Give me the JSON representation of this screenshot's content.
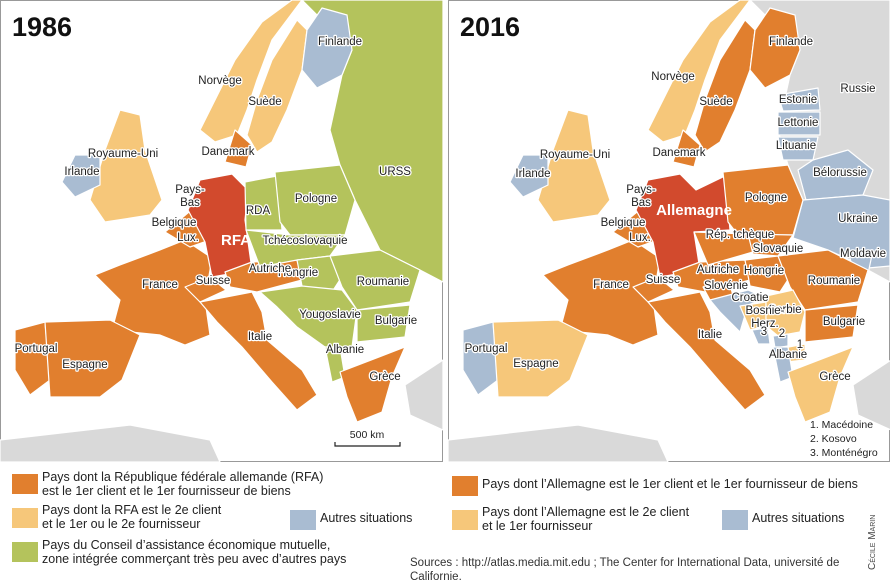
{
  "maps": [
    {
      "title": "1986",
      "labels": [
        "Finlande",
        "URSS",
        "Norvège",
        "Suède",
        "Royaume-Uni",
        "Irlande",
        "Danemark",
        [
          "Pays-",
          "Bas"
        ],
        "Belgique",
        "Lux.",
        "RDA",
        "RFA",
        "Pologne",
        "Tchécoslovaquie",
        "Hongrie",
        "Autriche",
        "Suisse",
        "France",
        "Roumanie",
        "Yougoslavie",
        "Bulgarie",
        "Albanie",
        "Italie",
        "Portugal",
        "Espagne",
        "Grèce"
      ],
      "scale": "500 km"
    },
    {
      "title": "2016",
      "labels": [
        "Finlande",
        "Russie",
        "Norvège",
        "Suède",
        "Estonie",
        "Lettonie",
        "Lituanie",
        "Bélorussie",
        "Royaume-Uni",
        "Irlande",
        "Danemark",
        [
          "Pays-",
          "Bas"
        ],
        "Belgique",
        "Lux.",
        "Allemagne",
        "Pologne",
        "Ukraine",
        "Rép. tchèque",
        "Slovaquie",
        "Moldavie",
        "Autriche",
        "Hongrie",
        "Slovénie",
        "Suisse",
        "France",
        "Roumanie",
        "Croatie",
        "Serbie",
        [
          "Bosnie-",
          "Herz."
        ],
        "Bulgarie",
        "Italie",
        "Portugal",
        "Espagne",
        "Albanie",
        "Grèce",
        "3",
        "2",
        "1"
      ],
      "notes": [
        "1. Macédoine",
        "2. Kosovo",
        "3. Monténégro"
      ]
    }
  ],
  "legend_1986": [
    [
      "Pays dont la République fédérale allemande (RFA)",
      "est le 1er client et le 1er fournisseur de biens"
    ],
    [
      "Pays dont la RFA est le 2e client",
      "et le 1er ou le 2e fournisseur"
    ],
    [
      "Autres situations"
    ],
    [
      "Pays du Conseil d’assistance économique mutuelle,",
      "zone intégrée commerçant très peu avec d’autres pays"
    ]
  ],
  "legend_2016": [
    [
      "Pays dont l’Allemagne est le 1er client et le 1er fournisseur de biens"
    ],
    [
      "Pays dont l’Allemagne est le 2e client",
      "et le 1er fournisseur"
    ],
    [
      "Autres situations"
    ]
  ],
  "sources": "Sources : http://atlas.media.mit.edu ; The Center for International Data, université de Californie.",
  "credit": "Cécile Marin"
}
